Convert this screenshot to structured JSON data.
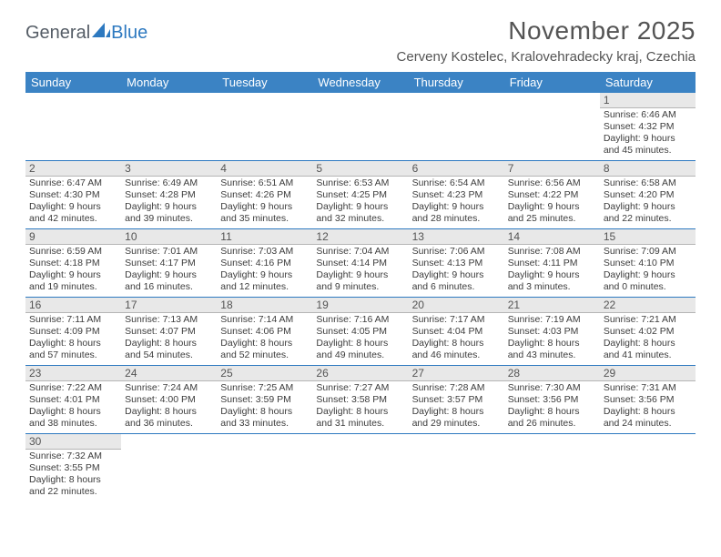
{
  "logo": {
    "word1": "General",
    "word2": "Blue"
  },
  "title": "November 2025",
  "location": "Cerveny Kostelec, Kralovehradecky kraj, Czechia",
  "colors": {
    "header_bg": "#3b83c4",
    "row_divider": "#2d79c0",
    "daynum_bg": "#e8e8e8",
    "daynum_border": "#b5b5b5",
    "text": "#3c3c3c",
    "title_text": "#545454"
  },
  "days_of_week": [
    "Sunday",
    "Monday",
    "Tuesday",
    "Wednesday",
    "Thursday",
    "Friday",
    "Saturday"
  ],
  "weeks": [
    [
      null,
      null,
      null,
      null,
      null,
      null,
      {
        "n": "1",
        "sunrise": "6:46 AM",
        "sunset": "4:32 PM",
        "dlh": "9",
        "dlm": "45"
      }
    ],
    [
      {
        "n": "2",
        "sunrise": "6:47 AM",
        "sunset": "4:30 PM",
        "dlh": "9",
        "dlm": "42"
      },
      {
        "n": "3",
        "sunrise": "6:49 AM",
        "sunset": "4:28 PM",
        "dlh": "9",
        "dlm": "39"
      },
      {
        "n": "4",
        "sunrise": "6:51 AM",
        "sunset": "4:26 PM",
        "dlh": "9",
        "dlm": "35"
      },
      {
        "n": "5",
        "sunrise": "6:53 AM",
        "sunset": "4:25 PM",
        "dlh": "9",
        "dlm": "32"
      },
      {
        "n": "6",
        "sunrise": "6:54 AM",
        "sunset": "4:23 PM",
        "dlh": "9",
        "dlm": "28"
      },
      {
        "n": "7",
        "sunrise": "6:56 AM",
        "sunset": "4:22 PM",
        "dlh": "9",
        "dlm": "25"
      },
      {
        "n": "8",
        "sunrise": "6:58 AM",
        "sunset": "4:20 PM",
        "dlh": "9",
        "dlm": "22"
      }
    ],
    [
      {
        "n": "9",
        "sunrise": "6:59 AM",
        "sunset": "4:18 PM",
        "dlh": "9",
        "dlm": "19"
      },
      {
        "n": "10",
        "sunrise": "7:01 AM",
        "sunset": "4:17 PM",
        "dlh": "9",
        "dlm": "16"
      },
      {
        "n": "11",
        "sunrise": "7:03 AM",
        "sunset": "4:16 PM",
        "dlh": "9",
        "dlm": "12"
      },
      {
        "n": "12",
        "sunrise": "7:04 AM",
        "sunset": "4:14 PM",
        "dlh": "9",
        "dlm": "9"
      },
      {
        "n": "13",
        "sunrise": "7:06 AM",
        "sunset": "4:13 PM",
        "dlh": "9",
        "dlm": "6"
      },
      {
        "n": "14",
        "sunrise": "7:08 AM",
        "sunset": "4:11 PM",
        "dlh": "9",
        "dlm": "3"
      },
      {
        "n": "15",
        "sunrise": "7:09 AM",
        "sunset": "4:10 PM",
        "dlh": "9",
        "dlm": "0"
      }
    ],
    [
      {
        "n": "16",
        "sunrise": "7:11 AM",
        "sunset": "4:09 PM",
        "dlh": "8",
        "dlm": "57"
      },
      {
        "n": "17",
        "sunrise": "7:13 AM",
        "sunset": "4:07 PM",
        "dlh": "8",
        "dlm": "54"
      },
      {
        "n": "18",
        "sunrise": "7:14 AM",
        "sunset": "4:06 PM",
        "dlh": "8",
        "dlm": "52"
      },
      {
        "n": "19",
        "sunrise": "7:16 AM",
        "sunset": "4:05 PM",
        "dlh": "8",
        "dlm": "49"
      },
      {
        "n": "20",
        "sunrise": "7:17 AM",
        "sunset": "4:04 PM",
        "dlh": "8",
        "dlm": "46"
      },
      {
        "n": "21",
        "sunrise": "7:19 AM",
        "sunset": "4:03 PM",
        "dlh": "8",
        "dlm": "43"
      },
      {
        "n": "22",
        "sunrise": "7:21 AM",
        "sunset": "4:02 PM",
        "dlh": "8",
        "dlm": "41"
      }
    ],
    [
      {
        "n": "23",
        "sunrise": "7:22 AM",
        "sunset": "4:01 PM",
        "dlh": "8",
        "dlm": "38"
      },
      {
        "n": "24",
        "sunrise": "7:24 AM",
        "sunset": "4:00 PM",
        "dlh": "8",
        "dlm": "36"
      },
      {
        "n": "25",
        "sunrise": "7:25 AM",
        "sunset": "3:59 PM",
        "dlh": "8",
        "dlm": "33"
      },
      {
        "n": "26",
        "sunrise": "7:27 AM",
        "sunset": "3:58 PM",
        "dlh": "8",
        "dlm": "31"
      },
      {
        "n": "27",
        "sunrise": "7:28 AM",
        "sunset": "3:57 PM",
        "dlh": "8",
        "dlm": "29"
      },
      {
        "n": "28",
        "sunrise": "7:30 AM",
        "sunset": "3:56 PM",
        "dlh": "8",
        "dlm": "26"
      },
      {
        "n": "29",
        "sunrise": "7:31 AM",
        "sunset": "3:56 PM",
        "dlh": "8",
        "dlm": "24"
      }
    ],
    [
      {
        "n": "30",
        "sunrise": "7:32 AM",
        "sunset": "3:55 PM",
        "dlh": "8",
        "dlm": "22"
      },
      null,
      null,
      null,
      null,
      null,
      null
    ]
  ]
}
